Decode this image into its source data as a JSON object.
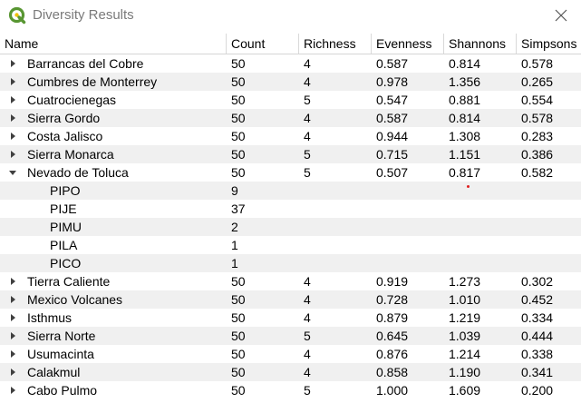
{
  "window": {
    "title": "Diversity Results",
    "app_icon": "qgis-icon",
    "close_icon": "close-icon",
    "accent": "#589632"
  },
  "table": {
    "headers": {
      "name": "Name",
      "count": "Count",
      "richness": "Richness",
      "evenness": "Evenness",
      "shannons": "Shannons",
      "simpsons": "Simpsons"
    },
    "rows": [
      {
        "type": "site",
        "expanded": false,
        "name": "Barrancas del Cobre",
        "count": "50",
        "richness": "4",
        "evenness": "0.587",
        "shannons": "0.814",
        "simpsons": "0.578"
      },
      {
        "type": "site",
        "expanded": false,
        "name": "Cumbres de Monterrey",
        "count": "50",
        "richness": "4",
        "evenness": "0.978",
        "shannons": "1.356",
        "simpsons": "0.265"
      },
      {
        "type": "site",
        "expanded": false,
        "name": "Cuatrocienegas",
        "count": "50",
        "richness": "5",
        "evenness": "0.547",
        "shannons": "0.881",
        "simpsons": "0.554"
      },
      {
        "type": "site",
        "expanded": false,
        "name": "Sierra Gordo",
        "count": "50",
        "richness": "4",
        "evenness": "0.587",
        "shannons": "0.814",
        "simpsons": "0.578"
      },
      {
        "type": "site",
        "expanded": false,
        "name": "Costa Jalisco",
        "count": "50",
        "richness": "4",
        "evenness": "0.944",
        "shannons": "1.308",
        "simpsons": "0.283"
      },
      {
        "type": "site",
        "expanded": false,
        "name": "Sierra Monarca",
        "count": "50",
        "richness": "5",
        "evenness": "0.715",
        "shannons": "1.151",
        "simpsons": "0.386"
      },
      {
        "type": "site",
        "expanded": true,
        "name": "Nevado de Toluca",
        "count": "50",
        "richness": "5",
        "evenness": "0.507",
        "shannons": "0.817",
        "simpsons": "0.582"
      },
      {
        "type": "species",
        "name": "PIPO",
        "count": "9"
      },
      {
        "type": "species",
        "name": "PIJE",
        "count": "37"
      },
      {
        "type": "species",
        "name": "PIMU",
        "count": "2"
      },
      {
        "type": "species",
        "name": "PILA",
        "count": "1"
      },
      {
        "type": "species",
        "name": "PICO",
        "count": "1"
      },
      {
        "type": "site",
        "expanded": false,
        "name": "Tierra Caliente",
        "count": "50",
        "richness": "4",
        "evenness": "0.919",
        "shannons": "1.273",
        "simpsons": "0.302"
      },
      {
        "type": "site",
        "expanded": false,
        "name": "Mexico Volcanes",
        "count": "50",
        "richness": "4",
        "evenness": "0.728",
        "shannons": "1.010",
        "simpsons": "0.452"
      },
      {
        "type": "site",
        "expanded": false,
        "name": "Isthmus",
        "count": "50",
        "richness": "4",
        "evenness": "0.879",
        "shannons": "1.219",
        "simpsons": "0.334"
      },
      {
        "type": "site",
        "expanded": false,
        "name": "Sierra Norte",
        "count": "50",
        "richness": "5",
        "evenness": "0.645",
        "shannons": "1.039",
        "simpsons": "0.444"
      },
      {
        "type": "site",
        "expanded": false,
        "name": "Usumacinta",
        "count": "50",
        "richness": "4",
        "evenness": "0.876",
        "shannons": "1.214",
        "simpsons": "0.338"
      },
      {
        "type": "site",
        "expanded": false,
        "name": "Calakmul",
        "count": "50",
        "richness": "4",
        "evenness": "0.858",
        "shannons": "1.190",
        "simpsons": "0.341"
      },
      {
        "type": "site",
        "expanded": false,
        "name": "Cabo Pulmo",
        "count": "50",
        "richness": "5",
        "evenness": "1.000",
        "shannons": "1.609",
        "simpsons": "0.200"
      }
    ],
    "colors": {
      "alt_row": "#f0f0f0",
      "arrow": "#404040",
      "header_border": "#d6d6d6",
      "title_text": "#7a7a7a"
    }
  }
}
